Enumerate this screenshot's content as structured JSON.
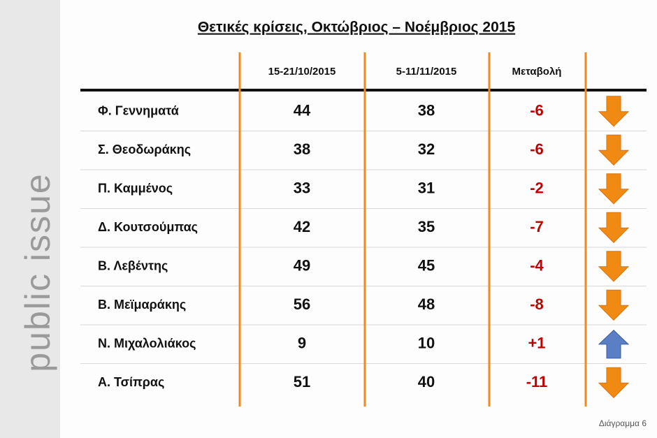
{
  "side_label": "public issue",
  "header": {
    "title": "Θετικές κρίσεις, Οκτώβριος – Νοέμβριος 2015"
  },
  "table": {
    "columns": [
      "15-21/10/2015",
      "5-11/11/2015",
      "Μεταβολή"
    ],
    "rows": [
      [
        "Φ. Γεννηματά",
        44,
        38,
        "-6"
      ],
      [
        "Σ. Θεοδωράκης",
        38,
        32,
        "-6"
      ],
      [
        "Π. Καμμένος",
        33,
        31,
        "-2"
      ],
      [
        "Δ. Κουτσούμπας",
        42,
        35,
        "-7"
      ],
      [
        "Β. Λεβέντης",
        49,
        45,
        "-4"
      ],
      [
        "Β. Μεϊμαράκης",
        56,
        48,
        "-8"
      ],
      [
        "Ν. Μιχαλολιάκος",
        9,
        10,
        "+1"
      ],
      [
        "Α. Τσίπρας",
        51,
        40,
        "-11"
      ]
    ]
  },
  "footer": "Διάγραμμα 6"
}
